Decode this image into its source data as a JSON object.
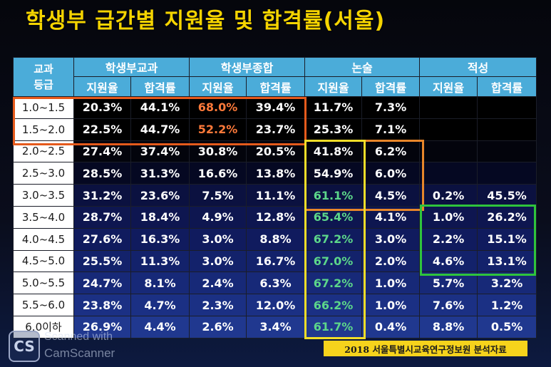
{
  "title": "학생부 급간별 지원율 및 합격률(서울)",
  "header": {
    "grade_label_line1": "교과",
    "grade_label_line2": "등급",
    "groups": [
      "학생부교과",
      "학생부종합",
      "논술",
      "적성"
    ],
    "sub_labels": [
      "지원율",
      "합격률",
      "지원율",
      "합격률",
      "지원율",
      "합격률",
      "지원율",
      "합격률"
    ]
  },
  "rows": [
    {
      "grade": "1.0~1.5",
      "values": [
        "20.3%",
        "44.1%",
        "68.0%",
        "39.4%",
        "11.7%",
        "7.3%",
        "",
        ""
      ]
    },
    {
      "grade": "1.5~2.0",
      "values": [
        "22.5%",
        "44.7%",
        "52.2%",
        "23.7%",
        "25.3%",
        "7.1%",
        "",
        ""
      ]
    },
    {
      "grade": "2.0~2.5",
      "values": [
        "27.4%",
        "37.4%",
        "30.8%",
        "20.5%",
        "41.8%",
        "6.2%",
        "",
        ""
      ]
    },
    {
      "grade": "2.5~3.0",
      "values": [
        "28.5%",
        "31.3%",
        "16.6%",
        "13.8%",
        "54.9%",
        "6.0%",
        "",
        ""
      ]
    },
    {
      "grade": "3.0~3.5",
      "values": [
        "31.2%",
        "23.6%",
        "7.5%",
        "11.1%",
        "61.1%",
        "4.5%",
        "0.2%",
        "45.5%"
      ]
    },
    {
      "grade": "3.5~4.0",
      "values": [
        "28.7%",
        "18.4%",
        "4.9%",
        "12.8%",
        "65.4%",
        "4.1%",
        "1.0%",
        "26.2%"
      ]
    },
    {
      "grade": "4.0~4.5",
      "values": [
        "27.6%",
        "16.3%",
        "3.0%",
        "8.8%",
        "67.2%",
        "3.0%",
        "2.2%",
        "15.1%"
      ]
    },
    {
      "grade": "4.5~5.0",
      "values": [
        "25.5%",
        "11.3%",
        "3.0%",
        "16.7%",
        "67.0%",
        "2.0%",
        "4.6%",
        "13.1%"
      ]
    },
    {
      "grade": "5.0~5.5",
      "values": [
        "24.7%",
        "8.1%",
        "2.4%",
        "6.3%",
        "67.2%",
        "1.0%",
        "5.7%",
        "3.2%"
      ]
    },
    {
      "grade": "5.5~6.0",
      "values": [
        "23.8%",
        "4.7%",
        "2.3%",
        "12.0%",
        "66.2%",
        "1.0%",
        "7.6%",
        "1.2%"
      ]
    },
    {
      "grade": "6.0이하",
      "values": [
        "26.9%",
        "4.4%",
        "2.6%",
        "3.4%",
        "61.7%",
        "0.4%",
        "8.8%",
        "0.5%"
      ]
    }
  ],
  "highlight_colors": {
    "title": "#f5d400",
    "orange_text": "#ff7a3a",
    "green_text": "#5cd68a",
    "box_orange": "#e55a1c",
    "box_yellow": "#f1dd28",
    "box_green": "#2fc43c",
    "header_bg": "#4bacd9"
  },
  "footnote": "2018 서울특별시교육연구정보원 분석자료",
  "watermark": {
    "logo": "CS",
    "line1": "Scanned with",
    "line2": "CamScanner"
  }
}
